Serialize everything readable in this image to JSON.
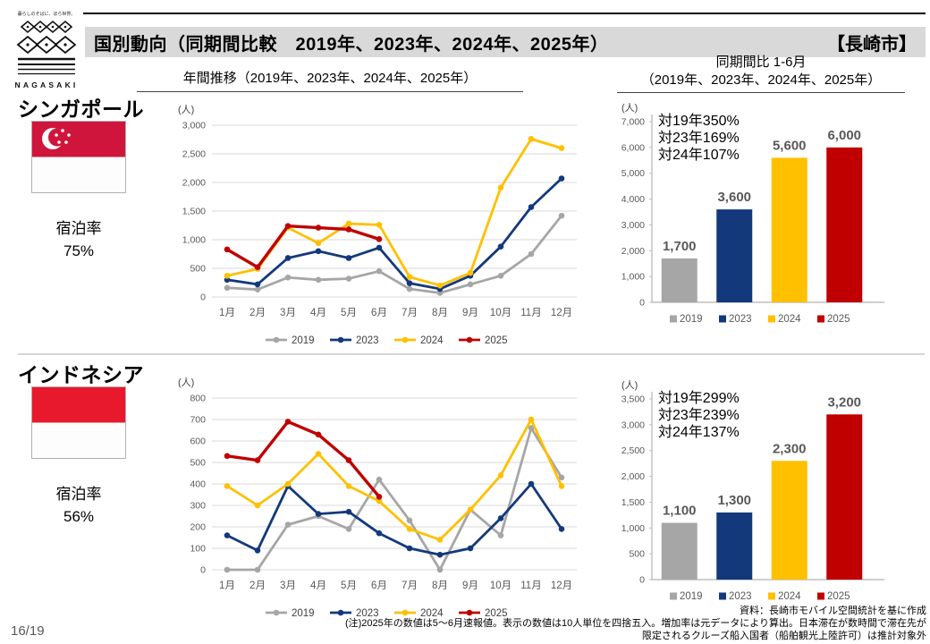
{
  "logo": {
    "tagline": "暮らしのそばに、ほら世界。",
    "name": "NAGASAKI"
  },
  "header": {
    "title": "国別動向（同期間比較　2019年、2023年、2024年、2025年）",
    "city": "【長崎市】"
  },
  "column_headers": {
    "left": "年間推移（2019年、2023年、2024年、2025年）",
    "right_line1": "同期間比 1-6月",
    "right_line2": "（2019年、2023年、2024年、2025年）"
  },
  "countries": [
    {
      "name": "シンガポール",
      "stay_label": "宿泊率",
      "stay_rate": "75%"
    },
    {
      "name": "インドネシア",
      "stay_label": "宿泊率",
      "stay_rate": "56%"
    }
  ],
  "colors": {
    "2019": "#a6a6a6",
    "2023": "#13397c",
    "2024": "#ffc000",
    "2025": "#c00000",
    "grid": "#d9d9d9",
    "axis_line": "#bfbfbf",
    "axis_text": "#595959",
    "sg_flag_red": "#d0153c",
    "id_flag_red": "#e8192d"
  },
  "chart_data": [
    {
      "id": "singapore-line",
      "type": "line",
      "unit": "(人)",
      "categories": [
        "1月",
        "2月",
        "3月",
        "4月",
        "5月",
        "6月",
        "7月",
        "8月",
        "9月",
        "10月",
        "11月",
        "12月"
      ],
      "ylim": [
        0,
        3000
      ],
      "ytick": 500,
      "grid": true,
      "legend_position": "bottom",
      "series": [
        {
          "name": "2019",
          "values": [
            160,
            130,
            340,
            300,
            320,
            450,
            140,
            70,
            220,
            370,
            750,
            1420
          ]
        },
        {
          "name": "2023",
          "values": [
            300,
            220,
            680,
            800,
            680,
            860,
            240,
            140,
            370,
            880,
            1570,
            2070
          ]
        },
        {
          "name": "2024",
          "values": [
            370,
            490,
            1210,
            940,
            1280,
            1260,
            350,
            200,
            420,
            1910,
            2760,
            2600
          ]
        },
        {
          "name": "2025",
          "values": [
            830,
            520,
            1240,
            1210,
            1180,
            1010
          ]
        }
      ]
    },
    {
      "id": "singapore-bar",
      "type": "bar",
      "unit": "(人)",
      "categories": [
        "2019",
        "2023",
        "2024",
        "2025"
      ],
      "values": [
        1700,
        3600,
        5600,
        6000
      ],
      "value_labels": [
        "1,700",
        "3,600",
        "5,600",
        "6,000"
      ],
      "annotation": [
        "対19年350%",
        "対23年169%",
        "対24年107%"
      ],
      "ylim": [
        0,
        7000
      ],
      "ytick": 1000,
      "grid": false,
      "legend_position": "bottom"
    },
    {
      "id": "indonesia-line",
      "type": "line",
      "unit": "(人)",
      "categories": [
        "1月",
        "2月",
        "3月",
        "4月",
        "5月",
        "6月",
        "7月",
        "8月",
        "9月",
        "10月",
        "11月",
        "12月"
      ],
      "ylim": [
        0,
        800
      ],
      "ytick": 100,
      "grid": true,
      "legend_position": "bottom",
      "series": [
        {
          "name": "2019",
          "values": [
            0,
            0,
            210,
            250,
            190,
            420,
            230,
            0,
            280,
            160,
            660,
            430
          ]
        },
        {
          "name": "2023",
          "values": [
            160,
            90,
            390,
            260,
            270,
            170,
            100,
            70,
            100,
            240,
            400,
            190
          ]
        },
        {
          "name": "2024",
          "values": [
            390,
            300,
            400,
            540,
            390,
            320,
            190,
            140,
            280,
            440,
            700,
            390
          ]
        },
        {
          "name": "2025",
          "values": [
            530,
            510,
            690,
            630,
            510,
            340
          ]
        }
      ]
    },
    {
      "id": "indonesia-bar",
      "type": "bar",
      "unit": "(人)",
      "categories": [
        "2019",
        "2023",
        "2024",
        "2025"
      ],
      "values": [
        1100,
        1300,
        2300,
        3200
      ],
      "value_labels": [
        "1,100",
        "1,300",
        "2,300",
        "3,200"
      ],
      "annotation": [
        "対19年299%",
        "対23年239%",
        "対24年137%"
      ],
      "ylim": [
        0,
        3500
      ],
      "ytick": 500,
      "grid": false,
      "legend_position": "bottom"
    }
  ],
  "footer": {
    "page_number": "16/19",
    "source": "資料：長崎市モバイル空間統計を基に作成",
    "note": "(注)2025年の数値は5～6月速報値。表示の数値は10人単位を四捨五入。増加率は元データにより算出。日本滞在が数時間で滞在先が限定されるクルーズ船入国者（船舶観光上陸許可）は推計対象外"
  }
}
